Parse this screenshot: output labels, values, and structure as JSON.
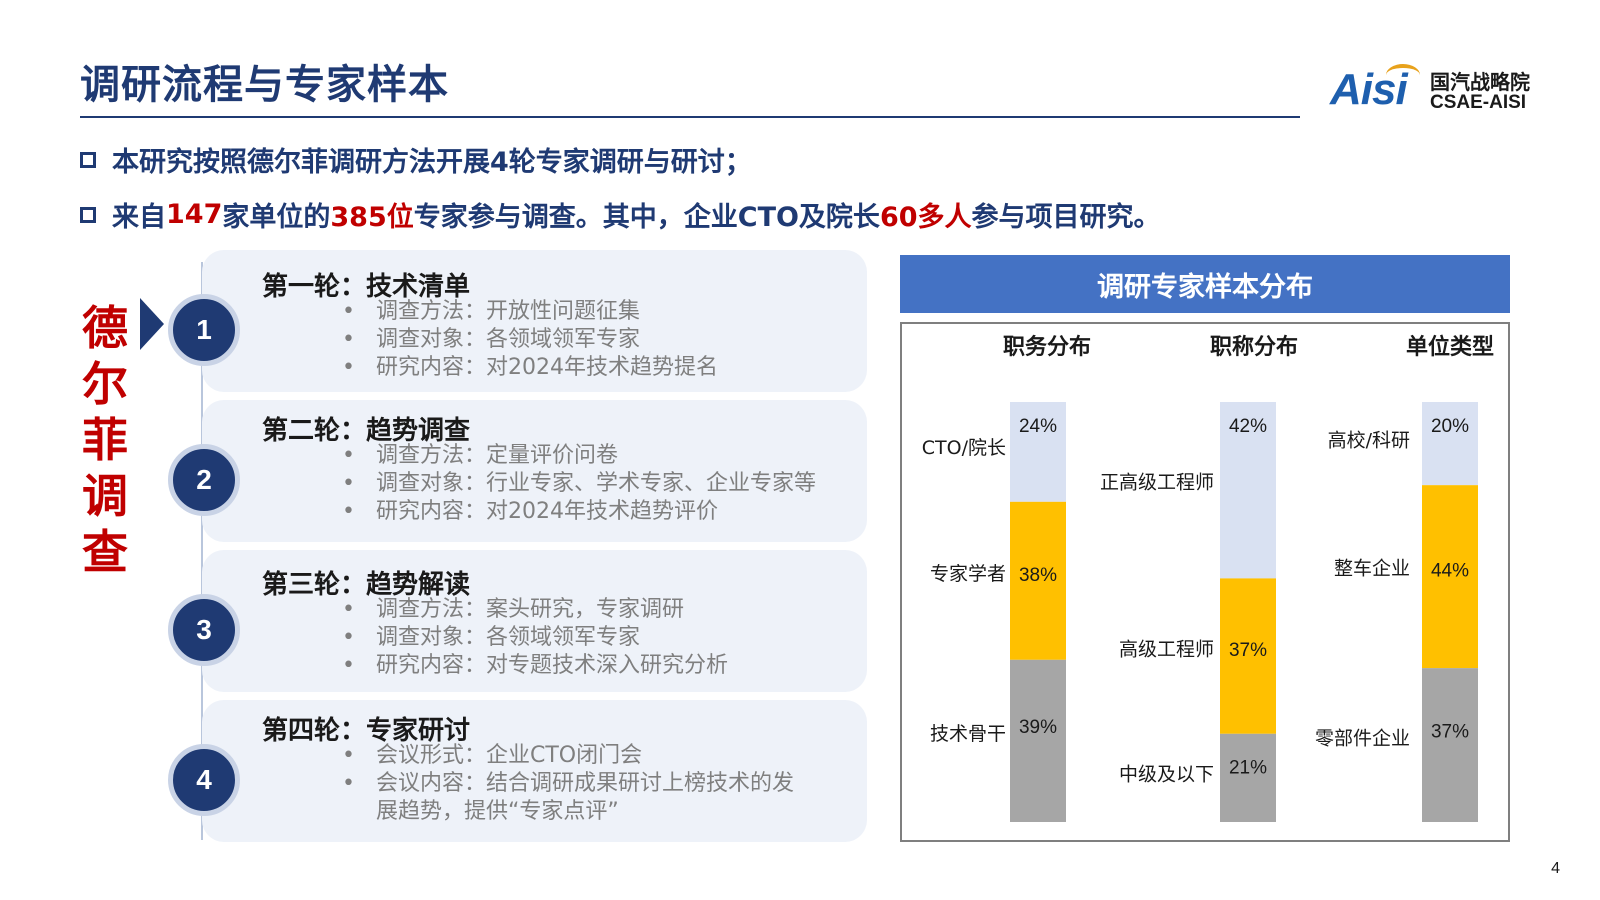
{
  "header": {
    "title": "调研流程与专家样本",
    "logo_mark": "Aisi",
    "logo_cn": "国汽战略院",
    "logo_en": "CSAE-AISI"
  },
  "bullets": {
    "b1": "本研究按照德尔菲调研方法开展4轮专家调研与研讨；",
    "b2_parts": [
      "来自",
      "147",
      "家单位的",
      "385位",
      "专家参与调查。其中，企业CTO及院长",
      "60多人",
      "参与项目研究。"
    ]
  },
  "delphi_label": [
    "德",
    "尔",
    "菲",
    "调",
    "查"
  ],
  "rounds": [
    {
      "number": "1",
      "title": "第一轮：技术清单",
      "items": [
        "调查方法：开放性问题征集",
        "调查对象：各领域领军专家",
        "研究内容：对2024年技术趋势提名"
      ]
    },
    {
      "number": "2",
      "title": "第二轮：趋势调查",
      "items": [
        "调查方法：定量评价问卷",
        "调查对象：行业专家、学术专家、企业专家等",
        "研究内容：对2024年技术趋势评价"
      ]
    },
    {
      "number": "3",
      "title": "第三轮：趋势解读",
      "items": [
        "调查方法：案头研究，专家调研",
        "调查对象：各领域领军专家",
        "研究内容：对专题技术深入研究分析"
      ]
    },
    {
      "number": "4",
      "title": "第四轮：专家研讨",
      "items": [
        "会议形式：企业CTO闭门会",
        "会议内容：结合调研成果研讨上榜技术的发展趋势，提供“专家点评”"
      ]
    }
  ],
  "panel": {
    "title": "调研专家样本分布"
  },
  "colors": {
    "top": "#d9e1f2",
    "mid": "#ffc000",
    "bottom": "#a6a6a6",
    "header": "#4472c4",
    "brand": "#1f3a73",
    "accent": "#c00000"
  },
  "chart_data": [
    {
      "type": "bar",
      "title": "职务分布",
      "stacked": true,
      "categories": [
        "CTO/院长",
        "专家学者",
        "技术骨干"
      ],
      "values": [
        24,
        38,
        39
      ],
      "labels": [
        "24%",
        "38%",
        "39%"
      ]
    },
    {
      "type": "bar",
      "title": "职称分布",
      "stacked": true,
      "categories": [
        "正高级工程师",
        "高级工程师",
        "中级及以下"
      ],
      "values": [
        42,
        37,
        21
      ],
      "labels": [
        "42%",
        "37%",
        "21%"
      ]
    },
    {
      "type": "bar",
      "title": "单位类型",
      "stacked": true,
      "categories": [
        "高校/科研",
        "整车企业",
        "零部件企业"
      ],
      "values": [
        20,
        44,
        37
      ],
      "labels": [
        "20%",
        "44%",
        "37%"
      ]
    }
  ],
  "page_number": "4"
}
